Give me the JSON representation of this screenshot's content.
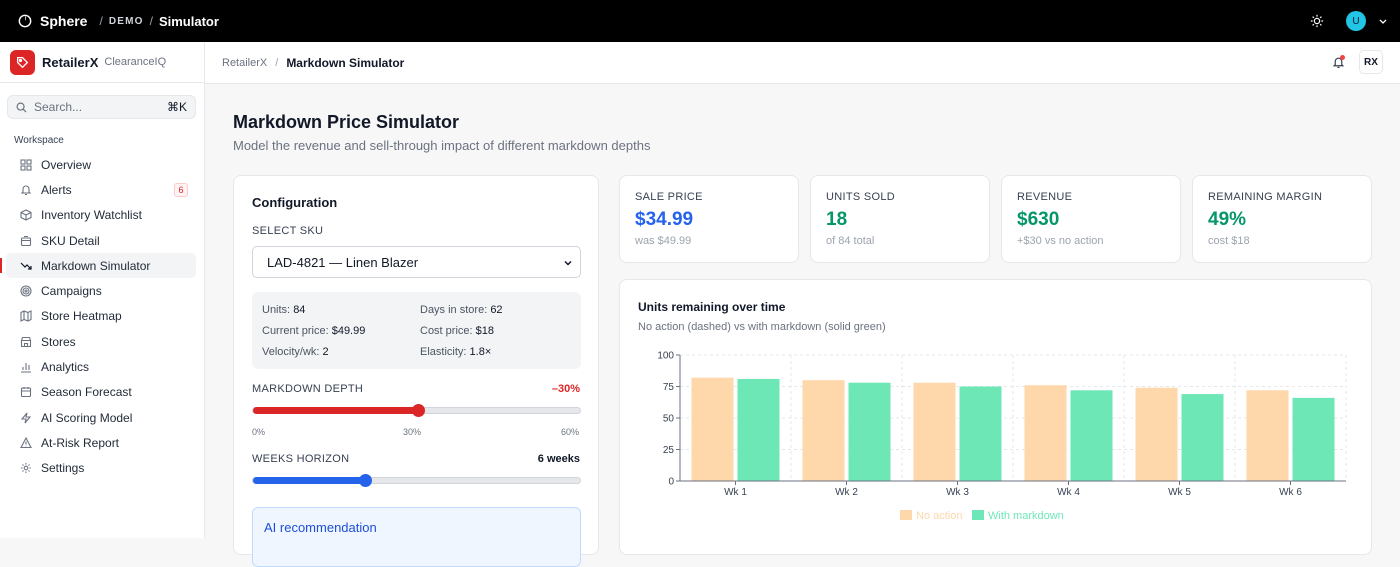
{
  "topbar": {
    "brand": "Sphere",
    "env": "DEMO",
    "page": "Simulator",
    "avatar_initial": "U"
  },
  "org": {
    "name": "RetailerX",
    "product": "ClearanceIQ"
  },
  "search": {
    "placeholder": "Search...",
    "shortcut": "⌘K"
  },
  "sidebar": {
    "section": "Workspace",
    "items": [
      {
        "label": "Overview",
        "icon": "grid-icon"
      },
      {
        "label": "Alerts",
        "icon": "bell-icon",
        "badge": "6"
      },
      {
        "label": "Inventory Watchlist",
        "icon": "box-icon"
      },
      {
        "label": "SKU Detail",
        "icon": "package-icon"
      },
      {
        "label": "Markdown Simulator",
        "icon": "trend-down-icon",
        "active": true
      },
      {
        "label": "Campaigns",
        "icon": "target-icon"
      },
      {
        "label": "Store Heatmap",
        "icon": "map-icon"
      },
      {
        "label": "Stores",
        "icon": "store-icon"
      },
      {
        "label": "Analytics",
        "icon": "bar-chart-icon"
      },
      {
        "label": "Season Forecast",
        "icon": "calendar-icon"
      },
      {
        "label": "AI Scoring Model",
        "icon": "zap-icon"
      },
      {
        "label": "At-Risk Report",
        "icon": "warning-icon"
      },
      {
        "label": "Settings",
        "icon": "gear-icon"
      }
    ]
  },
  "breadcrumb": {
    "parent": "RetailerX",
    "current": "Markdown Simulator"
  },
  "header": {
    "user_initials": "RX"
  },
  "page": {
    "title": "Markdown Price Simulator",
    "subtitle": "Model the revenue and sell-through impact of different markdown depths"
  },
  "config": {
    "title": "Configuration",
    "sku_label": "SELECT SKU",
    "sku_value": "LAD-4821 — Linen Blazer",
    "stats": {
      "units_label": "Units:",
      "units": "84",
      "days_label": "Days in store:",
      "days": "62",
      "price_label": "Current price:",
      "price": "$49.99",
      "cost_label": "Cost price:",
      "cost": "$18",
      "velocity_label": "Velocity/wk:",
      "velocity": "2",
      "elasticity_label": "Elasticity:",
      "elasticity": "1.8×"
    },
    "depth_label": "MARKDOWN DEPTH",
    "depth_value": "–30%",
    "depth_fraction": 0.5,
    "depth_ticks": [
      "0%",
      "30%",
      "60%"
    ],
    "weeks_label": "WEEKS HORIZON",
    "weeks_value": "6 weeks",
    "weeks_fraction": 0.34,
    "ai_title": "AI recommendation"
  },
  "kpis": [
    {
      "label": "SALE PRICE",
      "value": "$34.99",
      "sub": "was $49.99",
      "color": "#2563eb"
    },
    {
      "label": "UNITS SOLD",
      "value": "18",
      "sub": "of 84 total",
      "color": "#059669"
    },
    {
      "label": "REVENUE",
      "value": "$630",
      "sub": "+$30 vs no action",
      "color": "#059669"
    },
    {
      "label": "REMAINING MARGIN",
      "value": "49%",
      "sub": "cost $18",
      "color": "#059669"
    }
  ],
  "chart": {
    "title": "Units remaining over time",
    "subtitle": "No action (dashed) vs with markdown (solid green)"
  },
  "chart_data": {
    "type": "bar",
    "categories": [
      "Wk 1",
      "Wk 2",
      "Wk 3",
      "Wk 4",
      "Wk 5",
      "Wk 6"
    ],
    "series": [
      {
        "name": "No action",
        "values": [
          82,
          80,
          78,
          76,
          74,
          72
        ],
        "color": "#fed7aa"
      },
      {
        "name": "With markdown",
        "values": [
          81,
          78,
          75,
          72,
          69,
          66
        ],
        "color": "#6ee7b7"
      }
    ],
    "yticks": [
      0,
      25,
      50,
      75,
      100
    ],
    "ylim": [
      0,
      100
    ],
    "grid": true,
    "legend": "bottom-center"
  }
}
